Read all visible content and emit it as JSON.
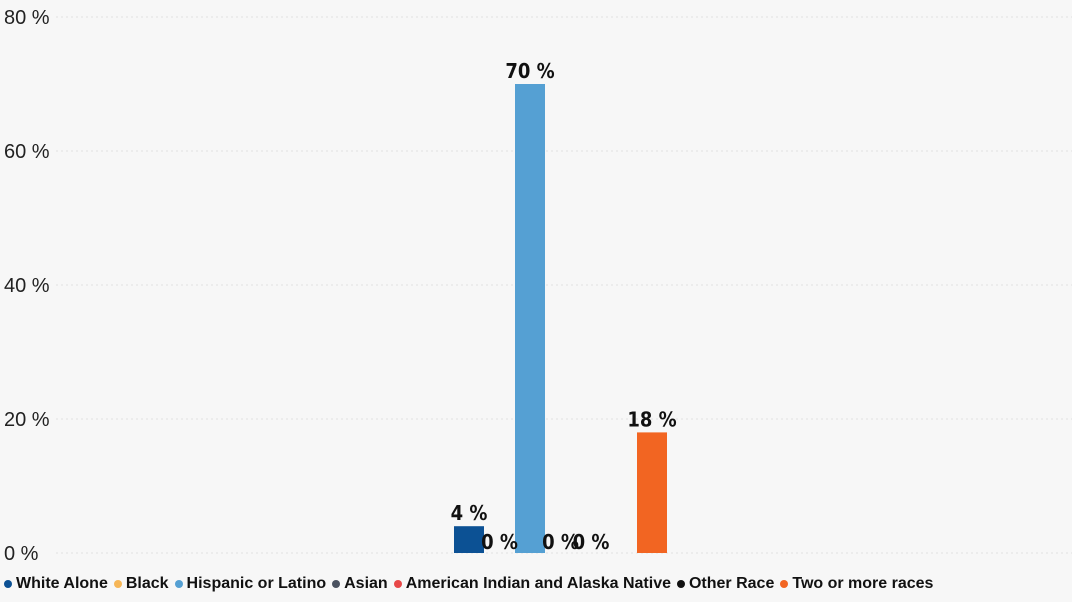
{
  "chart_data": {
    "type": "bar",
    "categories": [
      "White Alone",
      "Black",
      "Hispanic or Latino",
      "Asian",
      "American Indian and Alaska Native",
      "Other Race",
      "Two or more races"
    ],
    "series": [
      {
        "name": "White Alone",
        "value": 4,
        "label": "4 %",
        "color": "#0c5194"
      },
      {
        "name": "Black",
        "value": 0,
        "label": "0 %",
        "color": "#f6b657"
      },
      {
        "name": "Hispanic or Latino",
        "value": 70,
        "label": "70 %",
        "color": "#55a0d3"
      },
      {
        "name": "Asian",
        "value": 0,
        "label": "0 %",
        "color": "#4a5260"
      },
      {
        "name": "American Indian and Alaska Native",
        "value": 0,
        "label": "0 %",
        "color": "#e84848"
      },
      {
        "name": "Other Race",
        "value": null,
        "label": "",
        "color": "#111111"
      },
      {
        "name": "Two or more races",
        "value": 18,
        "label": "18 %",
        "color": "#f26522"
      }
    ],
    "ylim": [
      0,
      80
    ],
    "yticks": [
      {
        "value": 0,
        "label": "0 %"
      },
      {
        "value": 20,
        "label": "20 %"
      },
      {
        "value": 40,
        "label": "40 %"
      },
      {
        "value": 60,
        "label": "60 %"
      },
      {
        "value": 80,
        "label": "80 %"
      }
    ],
    "grid": true,
    "legend_position": "bottom"
  }
}
